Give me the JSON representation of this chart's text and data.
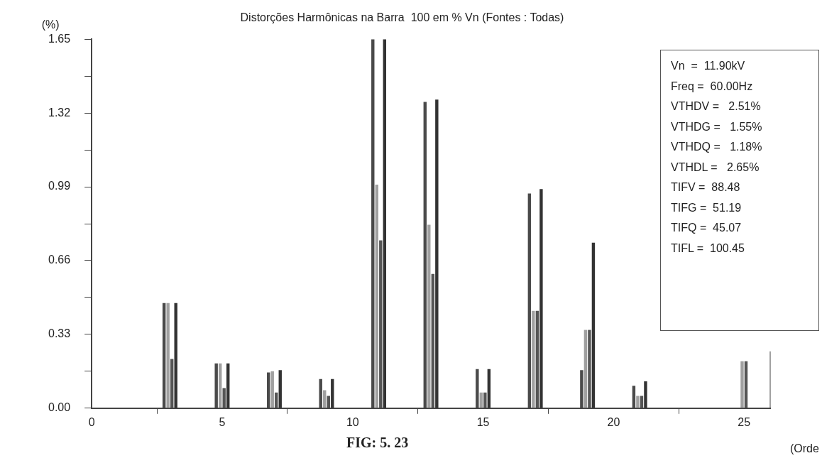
{
  "chart_data": {
    "type": "bar",
    "title": "Distorções Harmônicas na Barra  100 em % Vn (Fontes : Todas)",
    "ylabel": "(%)",
    "xlabel": "(Orde",
    "x": [
      3,
      5,
      7,
      9,
      11,
      13,
      15,
      17,
      19,
      21,
      23,
      25
    ],
    "series": [
      {
        "color": "#4a4a4a",
        "values": [
          0.47,
          0.2,
          0.16,
          0.13,
          1.65,
          1.37,
          0.175,
          0.96,
          0.17,
          0.1,
          null,
          null
        ]
      },
      {
        "color": "#a0a0a0",
        "values": [
          0.47,
          0.2,
          0.165,
          0.08,
          1.0,
          0.82,
          0.07,
          0.435,
          0.35,
          0.055,
          null,
          0.21
        ]
      },
      {
        "color": "#555555",
        "values": [
          0.22,
          0.09,
          0.07,
          0.055,
          0.75,
          0.6,
          0.07,
          0.435,
          0.35,
          0.055,
          null,
          0.21
        ]
      },
      {
        "color": "#333333",
        "values": [
          0.47,
          0.2,
          0.17,
          0.13,
          1.65,
          1.38,
          0.175,
          0.98,
          0.74,
          0.12,
          null,
          null
        ]
      }
    ],
    "xlim": [
      0,
      26
    ],
    "xticks": [
      0,
      5,
      10,
      15,
      20,
      25
    ],
    "ylim": [
      0,
      1.65
    ],
    "yticks": [
      {
        "value": 0,
        "label": "0.00"
      },
      {
        "value": 0.165,
        "label": null
      },
      0.33,
      {
        "value": 0.495,
        "label": null
      },
      0.66,
      {
        "value": 0.825,
        "label": null
      },
      0.99,
      {
        "value": 1.155,
        "label": null
      },
      1.32,
      {
        "value": 1.485,
        "label": null
      },
      1.65
    ],
    "grid": false,
    "legend": false,
    "annotations": [
      "Vn  =  11.90kV",
      "Freq =  60.00Hz",
      "VTHDV =   2.51%",
      "VTHDG =   1.55%",
      "VTHDQ =   1.18%",
      "VTHDL =   2.65%",
      "TIFV =  88.48",
      "TIFG =  51.19",
      "TIFQ =  45.07",
      "TIFL =  100.45",
      "FIG: 5. 23"
    ]
  }
}
